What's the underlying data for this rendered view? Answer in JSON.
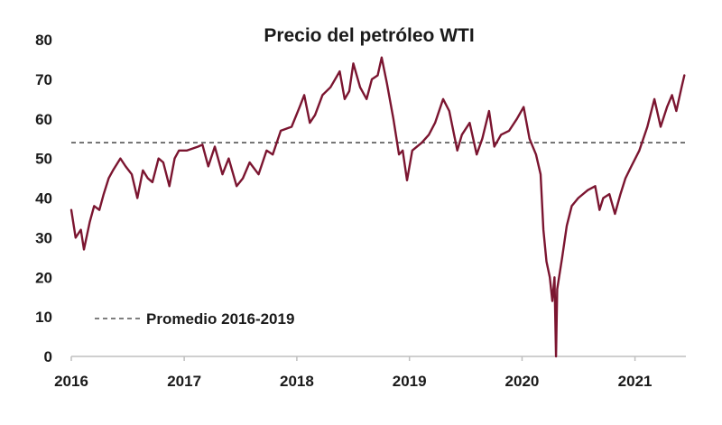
{
  "chart_data": {
    "type": "line",
    "title": "Precio del petróleo WTI",
    "xlabel": "",
    "ylabel": "",
    "x_tick_labels": [
      "2016",
      "2017",
      "2018",
      "2019",
      "2020",
      "2021"
    ],
    "y_tick_labels": [
      "0",
      "10",
      "20",
      "30",
      "40",
      "50",
      "60",
      "70",
      "80"
    ],
    "xlim": [
      "2016-01-01",
      "2021-06-15"
    ],
    "ylim": [
      0,
      80
    ],
    "grid": false,
    "legend_position": "bottom-left",
    "series": [
      {
        "name": "",
        "color": "#7b1530",
        "points": [
          [
            "2016-01-01",
            37
          ],
          [
            "2016-01-15",
            30
          ],
          [
            "2016-02-01",
            32
          ],
          [
            "2016-02-11",
            27
          ],
          [
            "2016-03-01",
            34
          ],
          [
            "2016-03-15",
            38
          ],
          [
            "2016-04-01",
            37
          ],
          [
            "2016-04-15",
            41
          ],
          [
            "2016-05-01",
            45
          ],
          [
            "2016-05-15",
            47
          ],
          [
            "2016-06-08",
            50
          ],
          [
            "2016-06-25",
            48
          ],
          [
            "2016-07-15",
            46
          ],
          [
            "2016-08-02",
            40
          ],
          [
            "2016-08-20",
            47
          ],
          [
            "2016-09-05",
            45
          ],
          [
            "2016-09-20",
            44
          ],
          [
            "2016-10-10",
            50
          ],
          [
            "2016-10-25",
            49
          ],
          [
            "2016-11-14",
            43
          ],
          [
            "2016-12-01",
            50
          ],
          [
            "2016-12-15",
            52
          ],
          [
            "2017-01-10",
            52
          ],
          [
            "2017-02-15",
            53
          ],
          [
            "2017-03-01",
            53.5
          ],
          [
            "2017-03-20",
            48
          ],
          [
            "2017-04-10",
            53
          ],
          [
            "2017-05-05",
            46
          ],
          [
            "2017-05-25",
            50
          ],
          [
            "2017-06-20",
            43
          ],
          [
            "2017-07-10",
            45
          ],
          [
            "2017-08-01",
            49
          ],
          [
            "2017-08-30",
            46
          ],
          [
            "2017-09-25",
            52
          ],
          [
            "2017-10-15",
            51
          ],
          [
            "2017-11-10",
            57
          ],
          [
            "2017-12-15",
            58
          ],
          [
            "2018-01-10",
            63
          ],
          [
            "2018-01-25",
            66
          ],
          [
            "2018-02-12",
            59
          ],
          [
            "2018-03-01",
            61
          ],
          [
            "2018-03-25",
            66
          ],
          [
            "2018-04-20",
            68
          ],
          [
            "2018-05-20",
            72
          ],
          [
            "2018-06-05",
            65
          ],
          [
            "2018-06-20",
            67
          ],
          [
            "2018-07-03",
            74
          ],
          [
            "2018-07-25",
            68
          ],
          [
            "2018-08-15",
            65
          ],
          [
            "2018-09-01",
            70
          ],
          [
            "2018-09-20",
            71
          ],
          [
            "2018-10-03",
            75.5
          ],
          [
            "2018-10-20",
            69
          ],
          [
            "2018-11-10",
            60
          ],
          [
            "2018-11-28",
            51
          ],
          [
            "2018-12-10",
            52
          ],
          [
            "2018-12-24",
            44.5
          ],
          [
            "2019-01-10",
            52
          ],
          [
            "2019-02-10",
            54
          ],
          [
            "2019-03-05",
            56
          ],
          [
            "2019-03-25",
            59
          ],
          [
            "2019-04-20",
            65
          ],
          [
            "2019-05-10",
            62
          ],
          [
            "2019-06-05",
            52
          ],
          [
            "2019-06-20",
            56
          ],
          [
            "2019-07-15",
            59
          ],
          [
            "2019-08-07",
            51
          ],
          [
            "2019-08-25",
            55
          ],
          [
            "2019-09-16",
            62
          ],
          [
            "2019-10-03",
            53
          ],
          [
            "2019-10-25",
            56
          ],
          [
            "2019-11-20",
            57
          ],
          [
            "2019-12-15",
            60
          ],
          [
            "2020-01-06",
            63
          ],
          [
            "2020-01-25",
            55
          ],
          [
            "2020-02-15",
            51
          ],
          [
            "2020-03-01",
            46
          ],
          [
            "2020-03-10",
            32
          ],
          [
            "2020-03-20",
            24
          ],
          [
            "2020-03-31",
            20
          ],
          [
            "2020-04-08",
            14
          ],
          [
            "2020-04-15",
            20
          ],
          [
            "2020-04-20",
            0
          ],
          [
            "2020-04-24",
            17
          ],
          [
            "2020-05-10",
            25
          ],
          [
            "2020-05-25",
            33
          ],
          [
            "2020-06-10",
            38
          ],
          [
            "2020-07-01",
            40
          ],
          [
            "2020-08-01",
            42
          ],
          [
            "2020-08-25",
            43
          ],
          [
            "2020-09-08",
            37
          ],
          [
            "2020-09-20",
            40
          ],
          [
            "2020-10-10",
            41
          ],
          [
            "2020-10-28",
            36
          ],
          [
            "2020-11-15",
            41
          ],
          [
            "2020-12-01",
            45
          ],
          [
            "2020-12-20",
            48
          ],
          [
            "2021-01-15",
            52
          ],
          [
            "2021-02-10",
            58
          ],
          [
            "2021-03-05",
            65
          ],
          [
            "2021-03-25",
            58
          ],
          [
            "2021-04-15",
            63
          ],
          [
            "2021-05-01",
            66
          ],
          [
            "2021-05-15",
            62
          ],
          [
            "2021-06-01",
            68
          ],
          [
            "2021-06-10",
            71
          ]
        ]
      }
    ],
    "reference_lines": [
      {
        "label": "Promedio 2016-2019",
        "value": 54,
        "style": "dashed",
        "color": "#555555"
      }
    ]
  }
}
